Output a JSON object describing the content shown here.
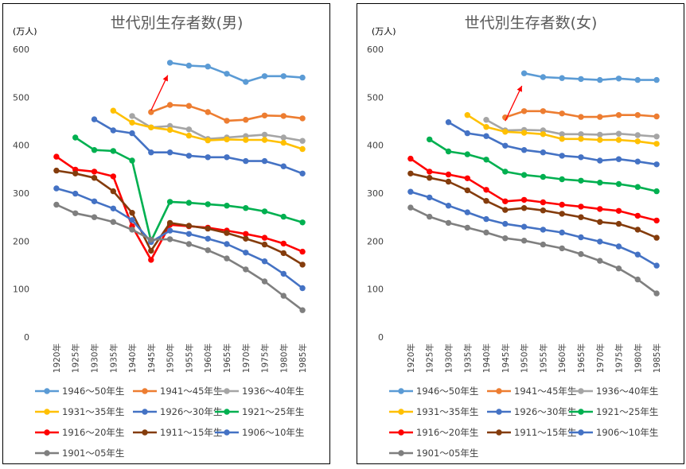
{
  "colors": {
    "1946-50": "#5b9bd5",
    "1941-45": "#ed7d31",
    "1936-40": "#a5a5a5",
    "1931-35": "#ffc000",
    "1926-30": "#4472c4",
    "1921-25": "#00b050",
    "1916-20": "#ff0000",
    "1911-15": "#843c0c",
    "1906-10": "#4472c4",
    "1901-05": "#7f7f7f",
    "arrow": "#ff0000"
  },
  "chart_data": [
    {
      "type": "line",
      "title": "世代別生存者数(男)",
      "unit_label": "(万人)",
      "categories": [
        "1920年",
        "1925年",
        "1930年",
        "1935年",
        "1940年",
        "1945年",
        "1950年",
        "1955年",
        "1960年",
        "1965年",
        "1970年",
        "1975年",
        "1980年",
        "1985年"
      ],
      "ylim": [
        0,
        600
      ],
      "yticks": [
        "0",
        "100",
        "200",
        "300",
        "400",
        "500",
        "600"
      ],
      "grid": false,
      "legend_position": "bottom",
      "annotation": "red arrow pointing to 1950 value of 1946〜50年生",
      "series": [
        {
          "name": "1946〜50年生",
          "color_key": "1946-50",
          "values": [
            null,
            null,
            null,
            null,
            null,
            null,
            572,
            566,
            564,
            549,
            532,
            544,
            544,
            541
          ]
        },
        {
          "name": "1941〜45年生",
          "color_key": "1941-45",
          "values": [
            null,
            null,
            null,
            null,
            null,
            469,
            484,
            482,
            469,
            451,
            453,
            462,
            461,
            456
          ]
        },
        {
          "name": "1936〜40年生",
          "color_key": "1936-40",
          "values": [
            null,
            null,
            null,
            null,
            461,
            437,
            440,
            433,
            413,
            416,
            419,
            422,
            416,
            409
          ]
        },
        {
          "name": "1931〜35年生",
          "color_key": "1931-35",
          "values": [
            null,
            null,
            null,
            472,
            447,
            437,
            432,
            420,
            410,
            412,
            411,
            411,
            405,
            392
          ]
        },
        {
          "name": "1926〜30年生",
          "color_key": "1926-30",
          "values": [
            null,
            null,
            454,
            431,
            425,
            385,
            385,
            378,
            375,
            375,
            367,
            367,
            356,
            341
          ]
        },
        {
          "name": "1921〜25年生",
          "color_key": "1921-25",
          "values": [
            null,
            416,
            390,
            388,
            368,
            200,
            282,
            280,
            277,
            274,
            269,
            262,
            251,
            239
          ]
        },
        {
          "name": "1916〜20年生",
          "color_key": "1916-20",
          "values": [
            376,
            349,
            345,
            335,
            231,
            161,
            234,
            231,
            228,
            222,
            215,
            207,
            195,
            178
          ]
        },
        {
          "name": "1911〜15年生",
          "color_key": "1911-15",
          "values": [
            347,
            341,
            332,
            304,
            259,
            180,
            238,
            232,
            226,
            217,
            205,
            193,
            175,
            151
          ]
        },
        {
          "name": "1906〜10年生",
          "color_key": "1906-10",
          "values": [
            310,
            299,
            283,
            268,
            244,
            198,
            222,
            215,
            205,
            194,
            176,
            158,
            132,
            102
          ]
        },
        {
          "name": "1901〜05年生",
          "color_key": "1901-05",
          "values": [
            276,
            258,
            250,
            240,
            224,
            203,
            204,
            194,
            181,
            164,
            141,
            116,
            86,
            56
          ]
        }
      ]
    },
    {
      "type": "line",
      "title": "世代別生存者数(女)",
      "unit_label": "(万人)",
      "categories": [
        "1920年",
        "1925年",
        "1930年",
        "1935年",
        "1940年",
        "1945年",
        "1950年",
        "1955年",
        "1960年",
        "1965年",
        "1970年",
        "1975年",
        "1980年",
        "1985年"
      ],
      "ylim": [
        0,
        600
      ],
      "yticks": [
        "0",
        "100",
        "200",
        "300",
        "400",
        "500",
        "600"
      ],
      "grid": false,
      "legend_position": "bottom",
      "annotation": "red arrow pointing to 1950 value of 1946〜50年生",
      "series": [
        {
          "name": "1946〜50年生",
          "color_key": "1946-50",
          "values": [
            null,
            null,
            null,
            null,
            null,
            null,
            550,
            542,
            540,
            538,
            536,
            539,
            536,
            536
          ]
        },
        {
          "name": "1941〜45年生",
          "color_key": "1941-45",
          "values": [
            null,
            null,
            null,
            null,
            null,
            458,
            471,
            471,
            466,
            459,
            459,
            463,
            463,
            460
          ]
        },
        {
          "name": "1936〜40年生",
          "color_key": "1936-40",
          "values": [
            null,
            null,
            null,
            null,
            453,
            431,
            432,
            431,
            423,
            423,
            422,
            424,
            421,
            418
          ]
        },
        {
          "name": "1931〜35年生",
          "color_key": "1931-35",
          "values": [
            null,
            null,
            null,
            463,
            438,
            428,
            426,
            423,
            413,
            413,
            411,
            411,
            408,
            403
          ]
        },
        {
          "name": "1926〜30年生",
          "color_key": "1926-30",
          "values": [
            null,
            null,
            448,
            425,
            419,
            399,
            390,
            385,
            378,
            375,
            368,
            371,
            366,
            360
          ]
        },
        {
          "name": "1921〜25年生",
          "color_key": "1921-25",
          "values": [
            null,
            412,
            387,
            381,
            370,
            345,
            338,
            334,
            329,
            326,
            322,
            319,
            313,
            304
          ]
        },
        {
          "name": "1916〜20年生",
          "color_key": "1916-20",
          "values": [
            372,
            345,
            339,
            331,
            307,
            283,
            286,
            281,
            276,
            272,
            267,
            263,
            253,
            243
          ]
        },
        {
          "name": "1911〜15年生",
          "color_key": "1911-15",
          "values": [
            341,
            332,
            324,
            306,
            284,
            265,
            269,
            264,
            257,
            250,
            240,
            236,
            224,
            207
          ]
        },
        {
          "name": "1906〜10年生",
          "color_key": "1906-10",
          "values": [
            303,
            291,
            274,
            260,
            246,
            236,
            230,
            224,
            218,
            208,
            199,
            189,
            172,
            149
          ]
        },
        {
          "name": "1901〜05年生",
          "color_key": "1901-05",
          "values": [
            270,
            251,
            238,
            228,
            218,
            206,
            201,
            193,
            185,
            173,
            159,
            143,
            120,
            91
          ]
        }
      ]
    }
  ]
}
